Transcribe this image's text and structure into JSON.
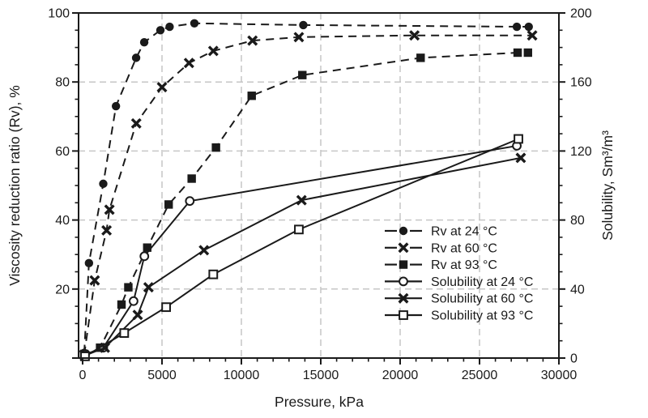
{
  "chart_data": {
    "type": "line",
    "title": "",
    "xlabel": "Pressure, kPa",
    "ylabel_left": "Viscosity reduction ratio (Rv), %",
    "ylabel_right": "Solubility, Sm³/m³",
    "x_range": [
      0,
      30000
    ],
    "y_left_range": [
      0,
      100
    ],
    "y_right_range": [
      0,
      200
    ],
    "x_major_ticks": [
      0,
      5000,
      10000,
      15000,
      20000,
      25000,
      30000
    ],
    "x_minor_step": 1000,
    "y_left_labels": [
      20,
      40,
      60,
      80,
      100
    ],
    "y_left_major_step": 20,
    "y_left_minor_step": 5,
    "y_right_labels": [
      0,
      40,
      80,
      120,
      160,
      200
    ],
    "y_right_major_step": 40,
    "y_right_minor_step": 10,
    "grid_on": true,
    "grid_x": [
      5000,
      10000,
      15000,
      20000,
      25000
    ],
    "grid_y_left": [
      20,
      40,
      60,
      80
    ],
    "legend_position": "inside-right",
    "series": [
      {
        "name": "Rv at 24 °C",
        "axis": "left",
        "line": "dashed",
        "marker": "circle-filled",
        "points": [
          [
            100,
            1.5
          ],
          [
            400,
            27.5
          ],
          [
            1300,
            50.5
          ],
          [
            2100,
            73
          ],
          [
            3370,
            87
          ],
          [
            3880,
            91.5
          ],
          [
            4900,
            95
          ],
          [
            5480,
            96
          ],
          [
            7040,
            97
          ],
          [
            13900,
            96.5
          ],
          [
            27350,
            96
          ],
          [
            28100,
            96
          ]
        ]
      },
      {
        "name": "Rv at 60 °C",
        "axis": "left",
        "line": "dashed",
        "marker": "x-bold",
        "points": [
          [
            100,
            1
          ],
          [
            760,
            22.5
          ],
          [
            1510,
            37
          ],
          [
            1690,
            43
          ],
          [
            3380,
            68
          ],
          [
            5000,
            78.5
          ],
          [
            6700,
            85.5
          ],
          [
            8230,
            89
          ],
          [
            10700,
            92
          ],
          [
            13620,
            93
          ],
          [
            20900,
            93.5
          ],
          [
            28320,
            93.5
          ]
        ]
      },
      {
        "name": "Rv at 93 °C",
        "axis": "left",
        "line": "dashed",
        "marker": "square-filled",
        "points": [
          [
            100,
            0.5
          ],
          [
            1100,
            3
          ],
          [
            2450,
            15.5
          ],
          [
            2880,
            20.5
          ],
          [
            4070,
            32
          ],
          [
            5420,
            44.5
          ],
          [
            6870,
            52
          ],
          [
            8400,
            61
          ],
          [
            10650,
            76
          ],
          [
            13840,
            82
          ],
          [
            21290,
            87
          ],
          [
            27400,
            88.5
          ],
          [
            28050,
            88.5
          ]
        ]
      },
      {
        "name": "Solubility at 24 °C",
        "axis": "right",
        "line": "solid",
        "marker": "circle-open",
        "points": [
          [
            150,
            2
          ],
          [
            1300,
            6
          ],
          [
            3210,
            33
          ],
          [
            3890,
            59
          ],
          [
            6750,
            91
          ],
          [
            27350,
            123
          ]
        ]
      },
      {
        "name": "Solubility at 60 °C",
        "axis": "right",
        "line": "solid",
        "marker": "x-bold",
        "points": [
          [
            150,
            1.5
          ],
          [
            1400,
            6
          ],
          [
            3470,
            25
          ],
          [
            4150,
            41
          ],
          [
            7640,
            62.5
          ],
          [
            13790,
            91.5
          ],
          [
            27600,
            116
          ]
        ]
      },
      {
        "name": "Solubility at 93 °C",
        "axis": "right",
        "line": "solid",
        "marker": "square-open",
        "points": [
          [
            150,
            1
          ],
          [
            2620,
            14.5
          ],
          [
            5260,
            29.5
          ],
          [
            8230,
            48.5
          ],
          [
            13620,
            74.5
          ],
          [
            27450,
            127
          ]
        ]
      }
    ]
  },
  "colors": {
    "series": "#1a1a1a",
    "grid": "#c6c6c6",
    "background": "#ffffff",
    "text": "#1a1a1a"
  }
}
